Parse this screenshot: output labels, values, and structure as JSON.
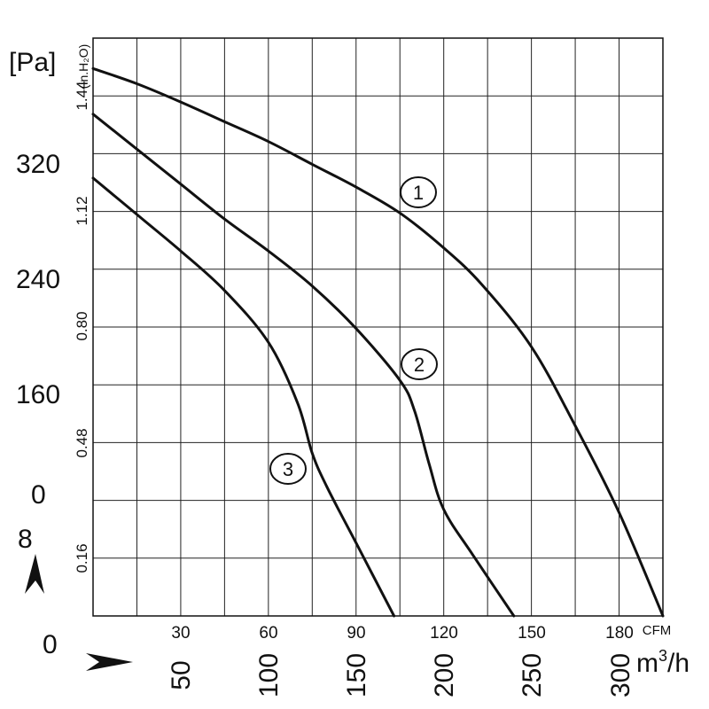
{
  "chart_data": {
    "type": "line",
    "title": "",
    "y_axis_pa": {
      "unit": "[Pa]",
      "ticks": [
        "320",
        "240",
        "160",
        "0"
      ],
      "range": [
        0,
        380
      ]
    },
    "y_axis_inh2o": {
      "unit": "(in.H₂O)",
      "ticks": [
        "1.44",
        "1.12",
        "0.80",
        "0.48",
        "0.16"
      ]
    },
    "x_axis_cfm": {
      "unit": "CFM",
      "ticks": [
        "30",
        "60",
        "90",
        "120",
        "150",
        "180"
      ],
      "range": [
        0,
        195
      ]
    },
    "x_axis_m3h": {
      "unit": "m",
      "unit_sup": "3",
      "unit_suffix": "/h",
      "ticks": [
        "50",
        "100",
        "150",
        "200",
        "250",
        "300"
      ]
    },
    "corner_labels": {
      "lower_zero": "0",
      "eight": "8"
    },
    "grid": true,
    "series": [
      {
        "name": "1",
        "x": [
          0,
          15,
          30,
          45,
          60,
          75,
          90,
          105,
          120,
          133,
          150,
          165,
          180,
          195
        ],
        "y": [
          360,
          350,
          338,
          325,
          312,
          297,
          282,
          265,
          242,
          218,
          177,
          125,
          68,
          0
        ]
      },
      {
        "name": "2",
        "x": [
          0,
          15,
          30,
          45,
          60,
          75,
          90,
          105,
          110,
          115,
          120,
          130,
          144
        ],
        "y": [
          330,
          307,
          284,
          261,
          240,
          217,
          189,
          155,
          135,
          100,
          70,
          40,
          0
        ]
      },
      {
        "name": "3",
        "x": [
          0,
          15,
          30,
          45,
          60,
          70,
          75,
          80,
          90,
          103
        ],
        "y": [
          288,
          264,
          240,
          214,
          180,
          140,
          107,
          85,
          48,
          0
        ]
      }
    ]
  }
}
